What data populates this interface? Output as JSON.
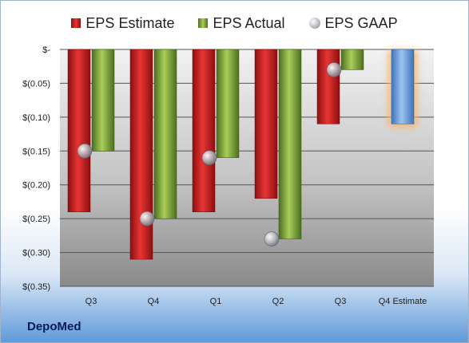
{
  "company": "DepoMed",
  "legend": {
    "estimate": "EPS Estimate",
    "actual": "EPS Actual",
    "gaap": "EPS GAAP"
  },
  "colors": {
    "estimate": "#d42424",
    "actual": "#8fb441",
    "gaap": "#b8bdc4",
    "future": "#6fa3dc",
    "future_glow": "#f7b26a"
  },
  "chart_data": {
    "type": "bar",
    "categories": [
      "Q3",
      "Q4",
      "Q1",
      "Q2",
      "Q3",
      "Q4 Estimate"
    ],
    "series": [
      {
        "name": "EPS Estimate",
        "values": [
          -0.24,
          -0.31,
          -0.24,
          -0.22,
          -0.11,
          null
        ]
      },
      {
        "name": "EPS Actual",
        "values": [
          -0.15,
          -0.25,
          -0.16,
          -0.28,
          -0.03,
          null
        ]
      },
      {
        "name": "EPS GAAP",
        "values": [
          -0.15,
          -0.25,
          -0.16,
          -0.28,
          -0.03,
          null
        ]
      }
    ],
    "future_estimate": {
      "category": "Q4 Estimate",
      "value": -0.11
    },
    "ylim": [
      -0.35,
      0
    ],
    "yticks": [
      0,
      -0.05,
      -0.1,
      -0.15,
      -0.2,
      -0.25,
      -0.3,
      -0.35
    ],
    "ytick_labels": [
      "$-",
      "$(0.05)",
      "$(0.10)",
      "$(0.15)",
      "$(0.20)",
      "$(0.25)",
      "$(0.30)",
      "$(0.35)"
    ],
    "grid": true,
    "legend_position": "top"
  }
}
